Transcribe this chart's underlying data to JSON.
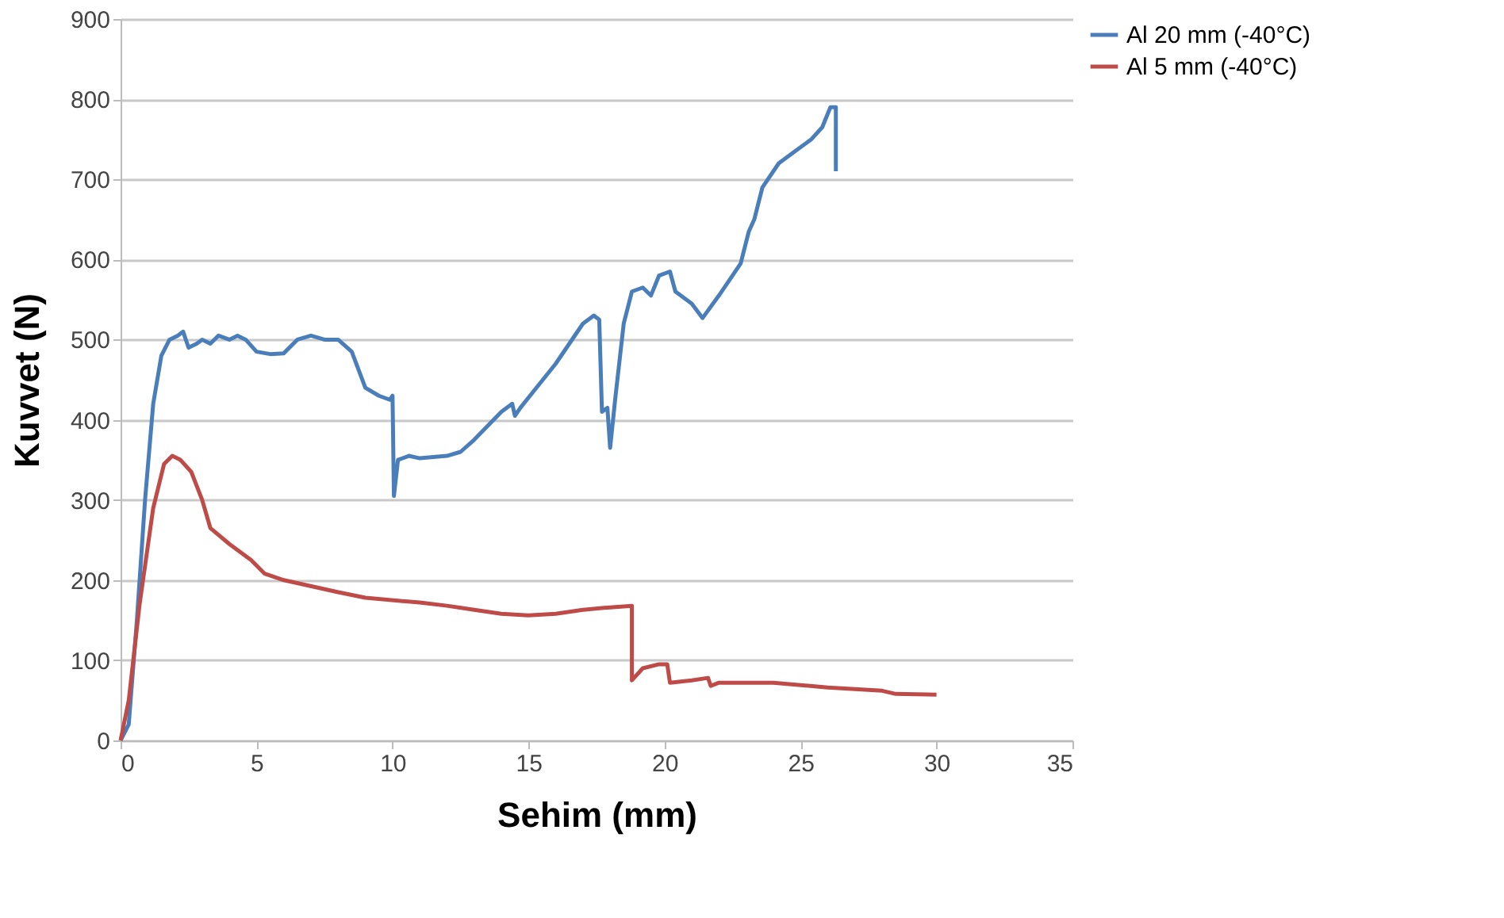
{
  "chart_data": {
    "type": "line",
    "xlabel": "Sehim (mm)",
    "ylabel": "Kuvvet (N)",
    "xlim": [
      0,
      35
    ],
    "xticks": [
      0,
      5,
      10,
      15,
      20,
      25,
      30,
      35
    ],
    "ylim": [
      0,
      900
    ],
    "yticks": [
      0,
      100,
      200,
      300,
      400,
      500,
      600,
      700,
      800,
      900
    ],
    "grid": "y",
    "legend": "right",
    "line_style": "solid",
    "marker": "none",
    "series": [
      {
        "name": "Al 20 mm (-40°C)",
        "color": "#4a7ebb",
        "x": [
          0,
          0.3,
          0.6,
          0.9,
          1.2,
          1.5,
          1.8,
          2.1,
          2.3,
          2.5,
          2.8,
          3.0,
          3.3,
          3.6,
          4.0,
          4.3,
          4.6,
          5.0,
          5.5,
          6.0,
          6.5,
          7.0,
          7.5,
          8.0,
          8.5,
          9.0,
          9.5,
          9.9,
          10.0,
          10.05,
          10.2,
          10.6,
          11,
          12,
          12.5,
          13,
          14,
          14.4,
          14.5,
          14.7,
          16,
          17,
          17.4,
          17.6,
          17.7,
          17.9,
          18.0,
          18.2,
          18.5,
          18.8,
          19.2,
          19.5,
          19.8,
          20.2,
          20.4,
          21.0,
          21.4,
          22.0,
          22.8,
          23.1,
          23.3,
          23.6,
          24.2,
          24.8,
          25.4,
          25.8,
          26.1,
          26.3,
          26.3
        ],
        "values": [
          0,
          20,
          150,
          300,
          420,
          480,
          500,
          505,
          510,
          490,
          495,
          500,
          495,
          505,
          500,
          505,
          500,
          485,
          482,
          483,
          500,
          505,
          500,
          500,
          485,
          440,
          430,
          425,
          430,
          305,
          350,
          355,
          352,
          355,
          360,
          375,
          410,
          420,
          405,
          415,
          470,
          520,
          530,
          525,
          410,
          415,
          365,
          430,
          520,
          560,
          565,
          555,
          580,
          585,
          560,
          545,
          527,
          555,
          595,
          635,
          650,
          690,
          720,
          735,
          750,
          765,
          790,
          790,
          710
        ]
      },
      {
        "name": "Al 5 mm (-40°C)",
        "color": "#be4b48",
        "x": [
          0,
          0.3,
          0.7,
          1.2,
          1.6,
          1.9,
          2.2,
          2.6,
          3.0,
          3.3,
          4.0,
          4.8,
          5.3,
          6,
          8,
          9,
          11,
          12,
          13,
          14,
          15,
          16,
          17,
          18,
          18.8,
          18.8,
          19.2,
          19.8,
          20.1,
          20.2,
          21,
          21.6,
          21.7,
          22,
          24,
          26,
          28,
          28.5,
          30
        ],
        "values": [
          0,
          50,
          170,
          290,
          345,
          355,
          350,
          335,
          300,
          265,
          245,
          225,
          208,
          200,
          185,
          178,
          172,
          168,
          163,
          158,
          156,
          158,
          163,
          166,
          168,
          75,
          90,
          95,
          95,
          72,
          75,
          78,
          68,
          72,
          72,
          66,
          62,
          58,
          57
        ]
      }
    ]
  }
}
